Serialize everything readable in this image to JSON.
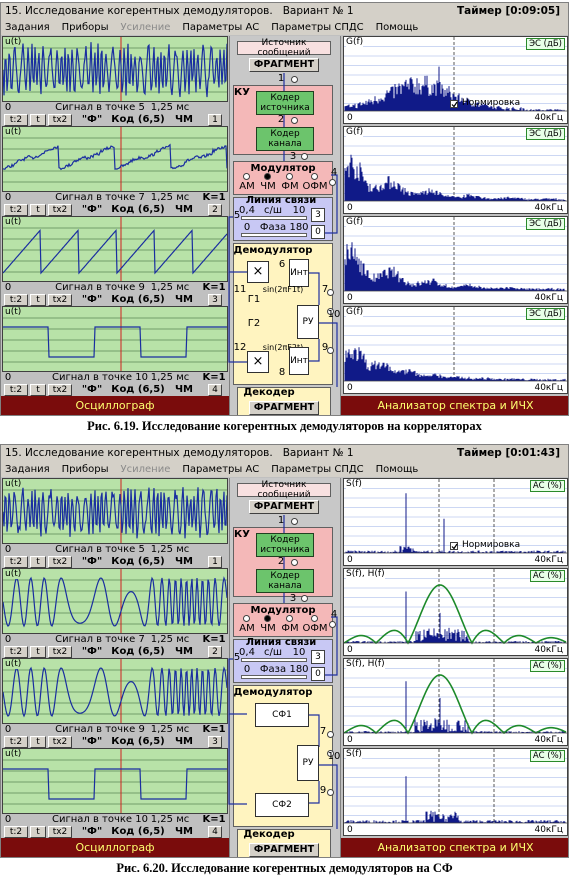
{
  "panels": [
    {
      "title": "15. Исследование когерентных демодуляторов.   Вариант № 1",
      "timer": "Таймер [0:09:05]",
      "menu": [
        "Задания",
        "Приборы",
        "Усиление",
        "Параметры АС",
        "Параметры СПДС",
        "Помощь"
      ],
      "oscillograph": {
        "label": "Осциллограф",
        "plots": [
          {
            "ylabel": "u(t)",
            "start": "0",
            "signal": "Сигнал в точке 5",
            "end": "1,25 мс",
            "buttons": [
              "t:2",
              "t",
              "tх2"
            ],
            "window": "\"Ф\"",
            "code": "Код (6,5)",
            "modulation": "ЧМ",
            "channel": "1"
          },
          {
            "ylabel": "u(t)",
            "start": "0",
            "signal": "Сигнал в точке 7",
            "end": "1,25 мс",
            "gain": "K=1",
            "buttons": [
              "t:2",
              "t",
              "tх2"
            ],
            "window": "\"Ф\"",
            "code": "Код (6,5)",
            "modulation": "ЧМ",
            "channel": "2"
          },
          {
            "ylabel": "u(t)",
            "start": "0",
            "signal": "Сигнал в точке 9",
            "end": "1,25 мс",
            "gain": "K=1",
            "buttons": [
              "t:2",
              "t",
              "tх2"
            ],
            "window": "\"Ф\"",
            "code": "Код (6,5)",
            "modulation": "ЧМ",
            "channel": "3"
          },
          {
            "ylabel": "u(t)",
            "start": "0",
            "signal": "Сигнал в точке 10",
            "end": "1,25 мс",
            "gain": "K=1",
            "buttons": [
              "t:2",
              "t",
              "tх2"
            ],
            "window": "\"Ф\"",
            "code": "Код (6,5)",
            "modulation": "ЧМ",
            "channel": "4"
          }
        ]
      },
      "analyzer": {
        "label": "Анализатор спектра и ИЧХ",
        "plots": [
          {
            "ylabel": "G(f)",
            "mode": "ЭС (дБ)",
            "start": "0",
            "end": "40кГц",
            "normalize": "Нормировка"
          },
          {
            "ylabel": "G(f)",
            "mode": "ЭС (дБ)",
            "start": "0",
            "end": "40кГц"
          },
          {
            "ylabel": "G(f)",
            "mode": "ЭС (дБ)",
            "start": "0",
            "end": "40кГц"
          },
          {
            "ylabel": "G(f)",
            "mode": "ЭС (дБ)",
            "start": "0",
            "end": "40кГц"
          }
        ]
      },
      "scheme": {
        "source": "Источник сообщений",
        "source_button": "ФРАГМЕНТ",
        "point_1": "1",
        "coder": "КУ",
        "source_coder": "Кодер источника",
        "point_2": "2",
        "channel_coder": "Кодер канала",
        "point_3": "3",
        "modulator": "Модулятор",
        "modulations": [
          "АМ",
          "ЧМ",
          "ФМ",
          "ОФМ"
        ],
        "point_4": "4",
        "line": "Линия связи",
        "snr_min": "0,4",
        "snr_label": "с/ш",
        "snr_max": "10",
        "snr_value": "3",
        "point_5": "5",
        "phase_min": "0",
        "phase_label": "Фаза",
        "phase_max": "180",
        "phase_value": "0",
        "demodulator": "Демодулятор",
        "demodulator_parts": [
          "×",
          "6",
          "Инт",
          "11",
          "sin(2πF1t)",
          "7",
          "Г1",
          "РУ",
          "Г2",
          "12",
          "sin(2πF2t)",
          "9",
          "×",
          "8",
          "Инт",
          "10"
        ],
        "decoder": "Декодер",
        "decoder_button": "ФРАГМЕНТ"
      },
      "caption": "Рис. 6.19. Исследование когерентных демодуляторов на корреляторах"
    },
    {
      "title": "15. Исследование когерентных демодуляторов.   Вариант № 1",
      "timer": "Таймер [0:01:43]",
      "menu": [
        "Задания",
        "Приборы",
        "Усиление",
        "Параметры АС",
        "Параметры СПДС",
        "Помощь"
      ],
      "oscillograph": {
        "label": "Осциллограф",
        "plots": [
          {
            "ylabel": "u(t)",
            "start": "0",
            "signal": "Сигнал в точке 5",
            "end": "1,25 мс",
            "buttons": [
              "t:2",
              "t",
              "tх2"
            ],
            "window": "\"Ф\"",
            "code": "Код (6,5)",
            "modulation": "ЧМ",
            "channel": "1"
          },
          {
            "ylabel": "u(t)",
            "start": "0",
            "signal": "Сигнал в точке 7",
            "end": "1,25 мс",
            "gain": "K=1",
            "buttons": [
              "t:2",
              "t",
              "tх2"
            ],
            "window": "\"Ф\"",
            "code": "Код (6,5)",
            "modulation": "ЧМ",
            "channel": "2"
          },
          {
            "ylabel": "u(t)",
            "start": "0",
            "signal": "Сигнал в точке 9",
            "end": "1,25 мс",
            "gain": "K=1",
            "buttons": [
              "t:2",
              "t",
              "tх2"
            ],
            "window": "\"Ф\"",
            "code": "Код (6,5)",
            "modulation": "ЧМ",
            "channel": "3"
          },
          {
            "ylabel": "u(t)",
            "start": "0",
            "signal": "Сигнал в точке 10",
            "end": "1,25 мс",
            "gain": "K=1",
            "buttons": [
              "t:2",
              "t",
              "tх2"
            ],
            "window": "\"Ф\"",
            "code": "Код (6,5)",
            "modulation": "ЧМ",
            "channel": "4"
          }
        ]
      },
      "analyzer": {
        "label": "Анализатор спектра и ИЧХ",
        "plots": [
          {
            "ylabel": "S(f)",
            "mode": "АС (%)",
            "start": "0",
            "end": "40кГц",
            "normalize": "Нормировка"
          },
          {
            "ylabel": "S(f), H(f)",
            "mode": "АС (%)",
            "start": "0",
            "end": "40кГц"
          },
          {
            "ylabel": "S(f), H(f)",
            "mode": "АС (%)",
            "start": "0",
            "end": "40кГц"
          },
          {
            "ylabel": "S(f)",
            "mode": "АС (%)",
            "start": "0",
            "end": "40кГц"
          }
        ]
      },
      "scheme": {
        "source": "Источник сообщений",
        "source_button": "ФРАГМЕНТ",
        "point_1": "1",
        "coder": "КУ",
        "source_coder": "Кодер источника",
        "point_2": "2",
        "channel_coder": "Кодер канала",
        "point_3": "3",
        "modulator": "Модулятор",
        "modulations": [
          "АМ",
          "ЧМ",
          "ФМ",
          "ОФМ"
        ],
        "point_4": "4",
        "line": "Линия связи",
        "snr_min": "0,4",
        "snr_label": "с/ш",
        "snr_max": "10",
        "snr_value": "3",
        "point_5": "5",
        "phase_min": "0",
        "phase_label": "Фаза",
        "phase_max": "180",
        "phase_value": "0",
        "demodulator": "Демодулятор",
        "demodulator_parts": [
          "СФ1",
          "7",
          "РУ",
          "СФ2",
          "9",
          "10"
        ],
        "decoder": "Декодер",
        "decoder_button": "ФРАГМЕНТ"
      },
      "caption": "Рис. 6.20. Исследование когерентных демодуляторов на СФ"
    }
  ]
}
